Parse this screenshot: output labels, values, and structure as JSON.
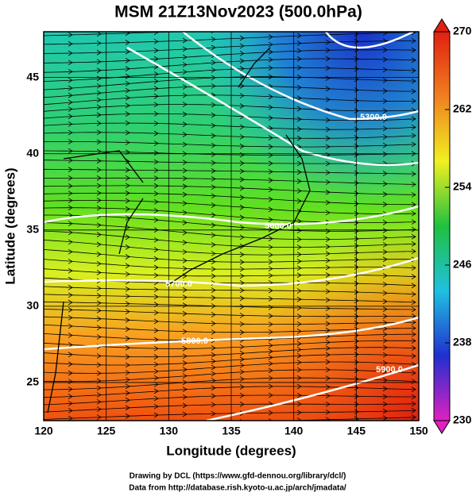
{
  "chart_data": {
    "type": "map",
    "title": "MSM 21Z13Nov2023 (500.0hPa)",
    "x_label": "Longitude (degrees)",
    "y_label": "Latitude  (degrees)",
    "xlim": [
      120,
      150
    ],
    "xticks": [
      120,
      125,
      130,
      135,
      140,
      145,
      150
    ],
    "ylim": [
      22.5,
      48
    ],
    "yticks": [
      25,
      30,
      35,
      40,
      45
    ],
    "grid": true,
    "colorbar": {
      "lim": [
        230,
        270
      ],
      "ticks": [
        230,
        238,
        246,
        254,
        262,
        270
      ],
      "colors": [
        "#e020c0",
        "#2030d0",
        "#20c0e0",
        "#20c040",
        "#f0f020",
        "#f08020",
        "#e02010"
      ]
    },
    "contour_labels": [
      "5300.0",
      "5600.0",
      "5700.0",
      "5800.0",
      "5900.0"
    ],
    "footer": [
      "Drawing by DCL (https://www.gfd-dennou.org/library/dcl/)",
      "Data from http://database.rish.kyoto-u.ac.jp/arch/jmadata/"
    ]
  }
}
